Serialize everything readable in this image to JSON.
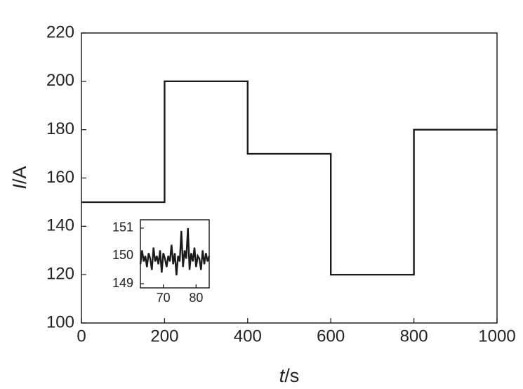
{
  "chart_data": [
    {
      "type": "line",
      "x_label_symbol": "t",
      "x_label_unit": "/s",
      "y_label_symbol": "I",
      "y_label_unit": "/A",
      "x": [
        0,
        200,
        200,
        400,
        400,
        600,
        600,
        800,
        800,
        1000
      ],
      "values": [
        150,
        150,
        200,
        200,
        170,
        170,
        120,
        120,
        180,
        180
      ],
      "color": "#1a1a1a",
      "xlim": [
        0,
        1000
      ],
      "xticks": [
        0,
        200,
        400,
        600,
        800,
        1000
      ],
      "ylim": [
        100,
        220
      ],
      "yticks": [
        100,
        120,
        140,
        160,
        180,
        200,
        220
      ]
    },
    {
      "type": "line",
      "x": [
        63,
        63.5,
        64,
        64.5,
        65,
        65.5,
        66,
        66.5,
        67,
        67.5,
        68,
        68.5,
        69,
        69.5,
        70,
        70.5,
        71,
        71.5,
        72,
        72.5,
        73,
        73.5,
        74,
        74.5,
        75,
        75.5,
        76,
        76.5,
        77,
        77.5,
        78,
        78.5,
        79,
        79.5,
        80,
        80.5,
        81,
        81.5,
        82,
        82.5,
        83,
        83.5,
        84
      ],
      "values": [
        149.7,
        150.2,
        149.8,
        150.0,
        149.6,
        150.1,
        149.9,
        149.5,
        150.3,
        149.8,
        150.0,
        149.7,
        150.2,
        149.4,
        150.1,
        149.9,
        149.6,
        150.0,
        149.8,
        150.4,
        149.7,
        150.1,
        149.3,
        150.0,
        149.8,
        150.9,
        149.6,
        150.2,
        149.9,
        151.0,
        149.5,
        150.1,
        149.8,
        150.3,
        149.6,
        150.0,
        149.9,
        149.5,
        150.2,
        149.7,
        150.1,
        149.8,
        150.0
      ],
      "color": "#1a1a1a",
      "xlim": [
        63,
        84
      ],
      "xticks": [
        70,
        80
      ],
      "ylim": [
        148.85,
        151.3
      ],
      "yticks": [
        149,
        150,
        151
      ]
    }
  ]
}
